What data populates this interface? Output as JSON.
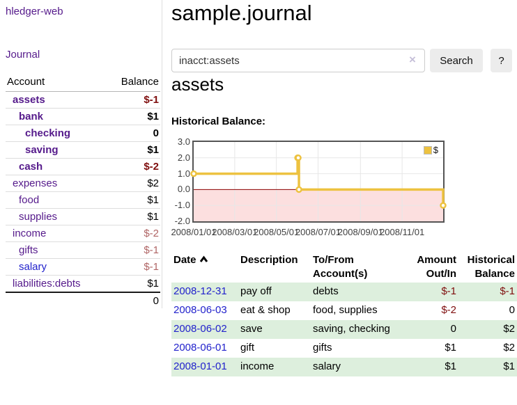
{
  "app": {
    "brand": "hledger-web",
    "nav_journal": "Journal"
  },
  "colors": {
    "link_purple": "#551a8b",
    "link_blue": "#2222cc",
    "negative_strong": "#7f0e0e",
    "negative_muted": "#b06565",
    "row_green": "#ddefdd",
    "series_yellow": "#edc240"
  },
  "sidebar": {
    "header": {
      "account": "Account",
      "balance": "Balance"
    },
    "accounts": [
      {
        "name": "assets",
        "balance": "$-1",
        "depth": 1,
        "matched": true
      },
      {
        "name": "bank",
        "balance": "$1",
        "depth": 2,
        "matched": true
      },
      {
        "name": "checking",
        "balance": "0",
        "depth": 3,
        "matched": true
      },
      {
        "name": "saving",
        "balance": "$1",
        "depth": 3,
        "matched": true
      },
      {
        "name": "cash",
        "balance": "$-2",
        "depth": 2,
        "matched": true
      },
      {
        "name": "expenses",
        "balance": "$2",
        "depth": 1,
        "matched": false
      },
      {
        "name": "food",
        "balance": "$1",
        "depth": 2,
        "matched": false
      },
      {
        "name": "supplies",
        "balance": "$1",
        "depth": 2,
        "matched": false
      },
      {
        "name": "income",
        "balance": "$-2",
        "depth": 1,
        "matched": false
      },
      {
        "name": "gifts",
        "balance": "$-1",
        "depth": 2,
        "matched": false
      },
      {
        "name": "salary",
        "balance": "$-1",
        "depth": 2,
        "matched": false,
        "color": "blue"
      },
      {
        "name": "liabilities:debts",
        "balance": "$1",
        "depth": 1,
        "matched": false,
        "last": true
      }
    ],
    "total": "0"
  },
  "main": {
    "title": "sample.journal",
    "search": {
      "value": "inacct:assets",
      "clear": "×",
      "button": "Search",
      "help": "?"
    },
    "account_heading": "assets",
    "section_label": "Historical Balance:"
  },
  "chart_data": {
    "type": "line",
    "title": "Historical Balance",
    "line_style": "steps",
    "legend": [
      {
        "label": "$",
        "color": "#edc240"
      }
    ],
    "legend_position": "top-right",
    "grid": true,
    "x_range": [
      "2008-01-01",
      "2008-12-31"
    ],
    "x_ticks": [
      "2008/01/01",
      "2008/03/01",
      "2008/05/01",
      "2008/07/01",
      "2008/09/01",
      "2008/11/01"
    ],
    "x_tick_dates": [
      "2008-01-01",
      "2008-03-01",
      "2008-05-01",
      "2008-07-01",
      "2008-09-01",
      "2008-11-01"
    ],
    "y_ticks": [
      3.0,
      2.0,
      1.0,
      0.0,
      -1.0,
      -2.0
    ],
    "ylim": [
      -2.0,
      3.0
    ],
    "series": [
      {
        "name": "$",
        "color": "#edc240",
        "points": [
          [
            "2008-01-01",
            1
          ],
          [
            "2008-06-01",
            2
          ],
          [
            "2008-06-02",
            2
          ],
          [
            "2008-06-03",
            0
          ],
          [
            "2008-12-31",
            -1
          ]
        ]
      }
    ],
    "negative_region_color": "#fcdfdf",
    "zero_line_color": "#8b0000"
  },
  "register": {
    "headers": {
      "date": "Date",
      "description": "Description",
      "accounts": "To/From Account(s)",
      "amount": "Amount Out/In",
      "balance": "Historical Balance"
    },
    "rows": [
      {
        "date": "2008-12-31",
        "description": "pay off",
        "accounts": "debts",
        "amount": "$-1",
        "balance": "$-1"
      },
      {
        "date": "2008-06-03",
        "description": "eat & shop",
        "accounts": "food, supplies",
        "amount": "$-2",
        "balance": "0"
      },
      {
        "date": "2008-06-02",
        "description": "save",
        "accounts": "saving, checking",
        "amount": "0",
        "balance": "$2"
      },
      {
        "date": "2008-06-01",
        "description": "gift",
        "accounts": "gifts",
        "amount": "$1",
        "balance": "$2"
      },
      {
        "date": "2008-01-01",
        "description": "income",
        "accounts": "salary",
        "amount": "$1",
        "balance": "$1"
      }
    ]
  }
}
